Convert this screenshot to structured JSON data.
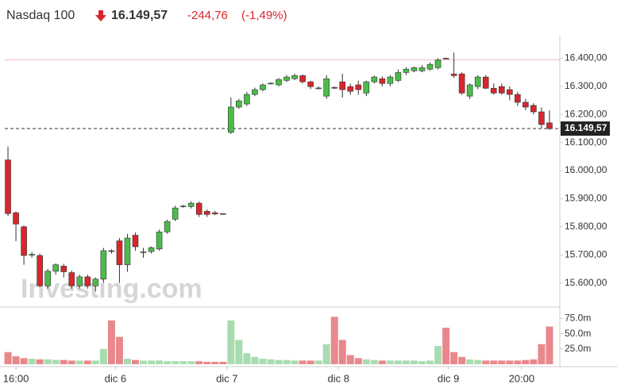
{
  "chart_data": {
    "type": "candlestick",
    "title": "Nasdaq 100",
    "change": "-244,76",
    "change_pct": "(-1,49%)",
    "watermark": "Investing.com",
    "last_price": {
      "value": 16149.57,
      "label": "16.149,57"
    },
    "previous_close": 16394.33,
    "up_color": "#4cbb4a",
    "down_color": "#d8262c",
    "volume_up_color": "#a8dcb0",
    "volume_down_color": "#e8888c",
    "open": [
      16038,
      15850,
      15800,
      15701,
      15698,
      15590,
      15642,
      15660,
      15637,
      15590,
      15622,
      15590,
      15614,
      15715,
      15750,
      15665,
      15770,
      15709,
      15712,
      15721,
      15782,
      15827,
      15872,
      15872,
      15884,
      15855,
      15850,
      15847,
      16136,
      16226,
      16237,
      16271,
      16288,
      16310,
      16305,
      16321,
      16327,
      16338,
      16316,
      16293,
      16265,
      16296,
      16316,
      16299,
      16305,
      16276,
      16316,
      16327,
      16310,
      16321,
      16349,
      16355,
      16355,
      16361,
      16366,
      16400,
      16344,
      16344,
      16265,
      16299,
      16333,
      16293,
      16299,
      16288,
      16271,
      16243,
      16232,
      16209,
      16170
    ],
    "high": [
      16086,
      15855,
      15805,
      15710,
      15705,
      15650,
      15670,
      15668,
      15645,
      15630,
      15630,
      15620,
      15725,
      15720,
      15760,
      15775,
      15780,
      15725,
      15730,
      15790,
      15825,
      15875,
      15878,
      15890,
      15890,
      15862,
      15856,
      15849,
      16260,
      16255,
      16280,
      16295,
      16310,
      16314,
      16330,
      16340,
      16345,
      16342,
      16320,
      16300,
      16340,
      16300,
      16345,
      16310,
      16320,
      16320,
      16338,
      16335,
      16340,
      16360,
      16368,
      16370,
      16375,
      16385,
      16400,
      16402,
      16420,
      16350,
      16310,
      16340,
      16340,
      16310,
      16310,
      16300,
      16280,
      16255,
      16240,
      16225,
      16215
    ],
    "low": [
      15838,
      15749,
      15665,
      15690,
      15586,
      15580,
      15630,
      15620,
      15580,
      15580,
      15580,
      15570,
      15600,
      15705,
      15600,
      15640,
      15715,
      15690,
      15705,
      15715,
      15775,
      15820,
      15868,
      15865,
      15835,
      15835,
      15842,
      15845,
      16130,
      16220,
      16230,
      16265,
      16282,
      16306,
      16300,
      16315,
      16322,
      16310,
      16290,
      16288,
      16255,
      16290,
      16260,
      16270,
      16270,
      16265,
      16310,
      16300,
      16300,
      16315,
      16340,
      16350,
      16350,
      16355,
      16360,
      16398,
      16330,
      16270,
      16255,
      16290,
      16290,
      16270,
      16270,
      16250,
      16230,
      16215,
      16200,
      16150,
      16145
    ],
    "close": [
      15847,
      15810,
      15698,
      15702,
      15590,
      15642,
      15665,
      15640,
      15590,
      15622,
      15590,
      15614,
      15715,
      15712,
      15665,
      15760,
      15729,
      15711,
      15726,
      15782,
      15819,
      15867,
      15874,
      15884,
      15844,
      15844,
      15846,
      15846,
      16226,
      16248,
      16271,
      16288,
      16305,
      16311,
      16324,
      16333,
      16338,
      16316,
      16299,
      16294,
      16327,
      16295,
      16288,
      16282,
      16288,
      16316,
      16333,
      16310,
      16333,
      16349,
      16361,
      16366,
      16366,
      16378,
      16394,
      16399,
      16338,
      16276,
      16305,
      16333,
      16293,
      16276,
      16276,
      16271,
      16243,
      16226,
      16209,
      16164,
      16149.57
    ],
    "volume": [
      20000000,
      13000000,
      10000000,
      9000000,
      8000000,
      8000000,
      7000000,
      7000000,
      6000000,
      6000000,
      6000000,
      6000000,
      25000000,
      72000000,
      45000000,
      9000000,
      7000000,
      6000000,
      6000000,
      6000000,
      5000000,
      5000000,
      5000000,
      5000000,
      5000000,
      4000000,
      4000000,
      4000000,
      72000000,
      40000000,
      18000000,
      12000000,
      9000000,
      8000000,
      7000000,
      7000000,
      6000000,
      6000000,
      6000000,
      6000000,
      33000000,
      78000000,
      40000000,
      15000000,
      10000000,
      8000000,
      7000000,
      6000000,
      6000000,
      6000000,
      6000000,
      6000000,
      5000000,
      6000000,
      30000000,
      60000000,
      20000000,
      12000000,
      8000000,
      7000000,
      6000000,
      6000000,
      6000000,
      6000000,
      6000000,
      7000000,
      8000000,
      33000000,
      62000000
    ],
    "ylim": [
      15520,
      16480
    ],
    "yticks": [
      {
        "value": 15600,
        "label": "15.600,00"
      },
      {
        "value": 15700,
        "label": "15.700,00"
      },
      {
        "value": 15800,
        "label": "15.800,00"
      },
      {
        "value": 15900,
        "label": "15.900,00"
      },
      {
        "value": 16000,
        "label": "16.000,00"
      },
      {
        "value": 16100,
        "label": "16.100,00"
      },
      {
        "value": 16200,
        "label": "16.200,00"
      },
      {
        "value": 16300,
        "label": "16.300,00"
      },
      {
        "value": 16400,
        "label": "16.400,00"
      }
    ],
    "volume_ylim": [
      0,
      90000000
    ],
    "volume_yticks": [
      {
        "value": 25000000,
        "label": "25.0m"
      },
      {
        "value": 50000000,
        "label": "50.0m"
      },
      {
        "value": 75000000,
        "label": "75.0m"
      }
    ],
    "xlim": [
      -1,
      69.3
    ],
    "xticks": [
      {
        "value": 1,
        "label": "16:00"
      },
      {
        "value": 13.5,
        "label": "dic 6"
      },
      {
        "value": 27.5,
        "label": "dic 7"
      },
      {
        "value": 41.5,
        "label": "dic 8"
      },
      {
        "value": 55.3,
        "label": "dic 9"
      },
      {
        "value": 64.5,
        "label": "20:00"
      }
    ]
  }
}
